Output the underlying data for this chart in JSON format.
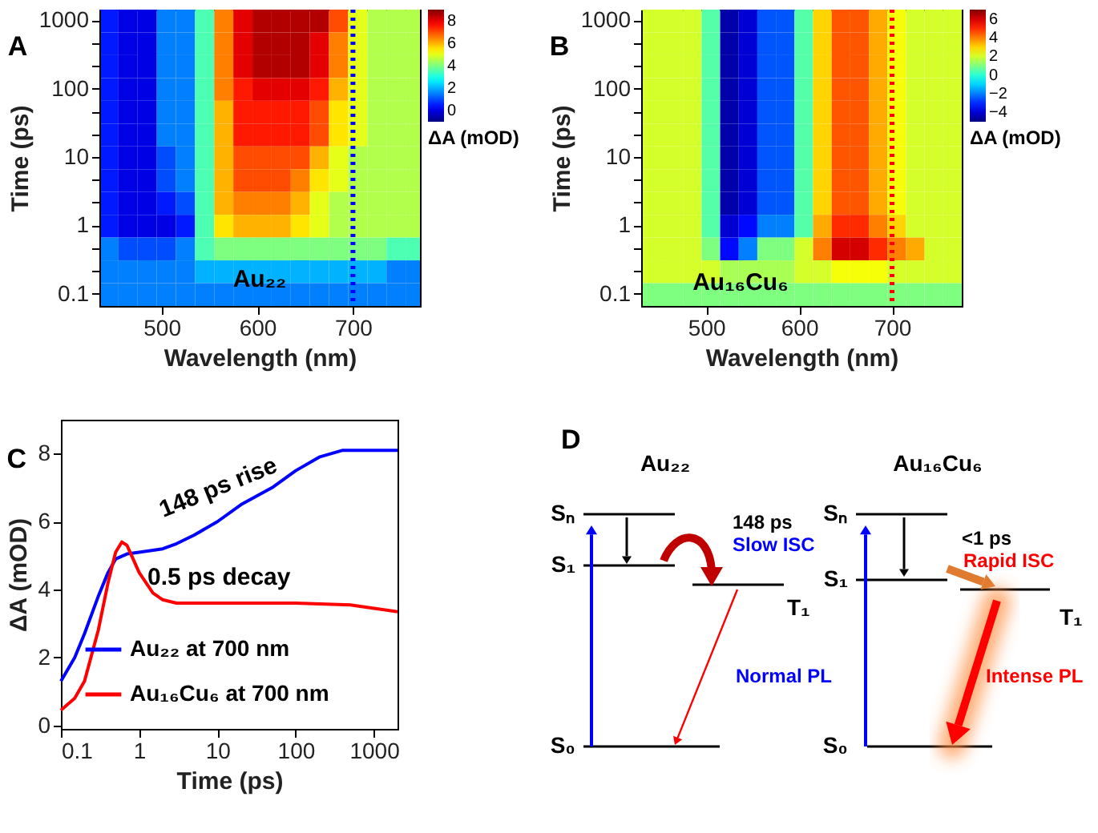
{
  "chart_data": [
    {
      "type": "heatmap",
      "title": "A",
      "xlabel": "Wavelength (nm)",
      "ylabel": "Time (ps)",
      "clabel": "ΔA (mOD)",
      "x": [
        445,
        465,
        485,
        505,
        525,
        545,
        565,
        585,
        605,
        625,
        645,
        665,
        685,
        705,
        725,
        745,
        765
      ],
      "y_categories": [
        "1000",
        null,
        null,
        "100",
        null,
        null,
        "10",
        null,
        null,
        "1",
        null,
        null,
        "0.1"
      ],
      "cells": [
        [
          0.5,
          0,
          0,
          1.5,
          1.5,
          3.5,
          6.5,
          8,
          8.5,
          8.5,
          8.5,
          8.5,
          7,
          5,
          4.5,
          4.5,
          4.5
        ],
        [
          0.5,
          0,
          0,
          1.5,
          1.5,
          3.5,
          6.5,
          8,
          8.5,
          8.5,
          8.5,
          8,
          6.5,
          5,
          4.5,
          4.5,
          4.5
        ],
        [
          0.5,
          0,
          0,
          1.5,
          1.5,
          3.5,
          6.5,
          8,
          8.5,
          8.5,
          8.5,
          8,
          6.5,
          5,
          4.5,
          4.5,
          4.5
        ],
        [
          0.5,
          0,
          0,
          1.5,
          1.5,
          3.5,
          6.5,
          7.5,
          8,
          8,
          8,
          7.5,
          6,
          5,
          4.5,
          4.5,
          4.5
        ],
        [
          0.5,
          0,
          0,
          1.5,
          1.5,
          3.5,
          6,
          7.5,
          7.5,
          7.5,
          7.5,
          7,
          5.5,
          5,
          4.5,
          4.5,
          4.5
        ],
        [
          0.5,
          0,
          0,
          1.5,
          1.5,
          3.5,
          6,
          7.5,
          7.5,
          7.5,
          7.5,
          7,
          5.5,
          5,
          4.5,
          4.5,
          4.5
        ],
        [
          0.5,
          0,
          0,
          1,
          1.5,
          3.5,
          6,
          7,
          7,
          7,
          7,
          6,
          5,
          4.5,
          4.5,
          4.5,
          4.5
        ],
        [
          0.5,
          0,
          0,
          1,
          1.5,
          3.5,
          6,
          7,
          7,
          7,
          6.5,
          5.5,
          5,
          4.5,
          4.5,
          4.5,
          4.5
        ],
        [
          0.5,
          0,
          0,
          0.5,
          1,
          3.5,
          6,
          6.5,
          6.5,
          6.5,
          6,
          5,
          4.5,
          4.5,
          4.5,
          4.5,
          4.5
        ],
        [
          0.5,
          0,
          0,
          0,
          0.5,
          3.5,
          5.5,
          6,
          6,
          6,
          5.5,
          5,
          4.5,
          4.5,
          4.5,
          4.5,
          4.5
        ],
        [
          1.5,
          1,
          1,
          1,
          1.5,
          3.5,
          4,
          4,
          4,
          4,
          4,
          4,
          4,
          4,
          4,
          3.5,
          3.5
        ],
        [
          1.5,
          1.5,
          1.5,
          1.5,
          1.5,
          2,
          2,
          2,
          2,
          2,
          2,
          2,
          2,
          2,
          2,
          1.5,
          1.5
        ],
        [
          1.5,
          1.5,
          1.5,
          1.5,
          1.5,
          1.5,
          1.5,
          1.5,
          1.5,
          1.5,
          1.5,
          1.5,
          1.5,
          1.5,
          1.5,
          1.5,
          1.5
        ]
      ],
      "xlim": [
        435,
        770
      ],
      "xticks": [
        500,
        600,
        700
      ],
      "clim": [
        -1,
        9
      ],
      "cticks": [
        0,
        2,
        4,
        6,
        8
      ],
      "annotations": [
        "Au₂₂"
      ],
      "ref_lines": [
        {
          "axis": "x",
          "value": 700,
          "label": null,
          "color": "#0000ff",
          "line_style": "dotted"
        }
      ]
    },
    {
      "type": "heatmap",
      "title": "B",
      "xlabel": "Wavelength (nm)",
      "ylabel": "Time (ps)",
      "clabel": "ΔA (mOD)",
      "x": [
        445,
        465,
        485,
        505,
        525,
        545,
        565,
        585,
        605,
        625,
        645,
        665,
        685,
        705,
        725,
        745,
        765
      ],
      "y_categories": [
        "1000",
        null,
        null,
        "100",
        null,
        null,
        "10",
        null,
        null,
        "1",
        null,
        null,
        "0.1"
      ],
      "cells": [
        [
          2,
          2,
          2,
          0.5,
          -4.5,
          -4,
          -2.5,
          -2.5,
          0.5,
          3,
          4.5,
          4.5,
          3.5,
          2.4,
          2,
          2,
          2
        ],
        [
          2,
          2,
          2,
          0.5,
          -4.5,
          -4,
          -2.5,
          -2.5,
          0.5,
          3,
          4.5,
          4.5,
          3.5,
          2.4,
          2,
          2,
          2
        ],
        [
          2,
          2,
          2,
          0.5,
          -4.5,
          -4,
          -2.5,
          -2.5,
          0.5,
          3,
          4.5,
          4.5,
          3.5,
          2.4,
          2,
          2,
          2
        ],
        [
          2,
          2,
          2,
          0.5,
          -4.5,
          -4,
          -2.5,
          -2.5,
          0.5,
          3,
          4.5,
          4.5,
          3.5,
          2.4,
          2,
          2,
          2
        ],
        [
          2,
          2,
          2,
          0.5,
          -4.5,
          -4,
          -2.5,
          -2.5,
          0.5,
          3,
          4.5,
          4.5,
          3.5,
          2.4,
          2,
          2,
          2
        ],
        [
          2,
          2,
          2,
          0.5,
          -4.5,
          -4,
          -2.5,
          -2.5,
          0.5,
          3,
          4.5,
          4.5,
          3.5,
          2.4,
          2,
          2,
          2
        ],
        [
          2,
          2,
          2,
          0.5,
          -4.5,
          -4,
          -2.5,
          -2.5,
          0.5,
          3,
          4.5,
          4.5,
          3.5,
          2.4,
          2,
          2,
          2
        ],
        [
          2,
          2,
          2,
          0.5,
          -4.5,
          -4,
          -2.5,
          -2.5,
          0.5,
          3,
          4.5,
          4.5,
          3.5,
          2.4,
          2,
          2,
          2
        ],
        [
          2,
          2,
          2,
          0.5,
          -4.5,
          -4,
          -2.5,
          -2.5,
          0.5,
          3,
          4.5,
          4.5,
          3.5,
          2.4,
          2,
          2,
          2
        ],
        [
          2,
          2,
          2,
          0.5,
          -4,
          -3.4,
          -2,
          -2,
          0.5,
          3.5,
          5,
          5,
          4,
          3,
          2,
          2,
          2
        ],
        [
          2,
          2,
          2,
          1,
          -3.4,
          -2,
          1,
          1,
          2,
          4,
          6,
          6,
          5,
          4,
          3.5,
          2,
          2
        ],
        [
          2,
          2,
          2,
          2,
          1.5,
          1.5,
          1.5,
          1.5,
          2,
          2,
          2.4,
          2.4,
          2.4,
          2,
          2,
          2,
          2
        ],
        [
          1,
          1,
          1,
          1,
          1,
          1,
          1,
          1,
          1,
          1,
          1,
          1,
          1,
          1,
          1,
          1,
          1
        ]
      ],
      "xlim": [
        430,
        775
      ],
      "xticks": [
        500,
        600,
        700
      ],
      "clim": [
        -5,
        7
      ],
      "cticks": [
        -4,
        -2,
        0,
        2,
        4,
        6
      ],
      "annotations": [
        "Au₁₆Cu₆"
      ],
      "ref_lines": [
        {
          "axis": "x",
          "value": 700,
          "label": null,
          "color": "#ff0000",
          "line_style": "dotted"
        }
      ]
    },
    {
      "type": "line",
      "title": "C",
      "xlabel": "Time (ps)",
      "ylabel": "ΔA (mOD)",
      "log": "x",
      "legend": "bottom left",
      "xlim": [
        0.1,
        2000
      ],
      "xticks": [
        0.1,
        1,
        10,
        100,
        1000
      ],
      "ylim": [
        -0.1,
        9
      ],
      "yticks": [
        0,
        2,
        4,
        6,
        8
      ],
      "series": [
        {
          "name": "Au₂₂ at 700 nm",
          "color": "#0000ff",
          "x": [
            0.1,
            0.15,
            0.2,
            0.3,
            0.4,
            0.5,
            0.7,
            1,
            2,
            3,
            5,
            10,
            20,
            50,
            100,
            200,
            400,
            1000,
            2000
          ],
          "values": [
            1.3,
            2,
            2.7,
            3.8,
            4.5,
            4.9,
            5.05,
            5.1,
            5.2,
            5.35,
            5.6,
            6,
            6.5,
            7,
            7.5,
            7.9,
            8.1,
            8.1,
            8.1
          ]
        },
        {
          "name": "Au₁₆Cu₆ at 700 nm",
          "color": "#ff0000",
          "x": [
            0.1,
            0.15,
            0.2,
            0.3,
            0.4,
            0.5,
            0.6,
            0.7,
            0.8,
            1,
            1.5,
            2,
            3,
            10,
            100,
            500,
            1000,
            2000
          ],
          "values": [
            0.45,
            0.8,
            1.3,
            2.8,
            4.2,
            5.1,
            5.4,
            5.3,
            5,
            4.5,
            3.9,
            3.7,
            3.6,
            3.6,
            3.6,
            3.55,
            3.45,
            3.35
          ]
        }
      ],
      "annotations": [
        "148 ps rise",
        "0.5 ps decay"
      ]
    },
    {
      "type": "other",
      "title": "D",
      "annotations": [
        "Au₂₂",
        "Sₙ",
        "S₁",
        "S₀",
        "T₁",
        "148 ps",
        "Slow ISC",
        "Normal PL",
        "Au₁₆Cu₆",
        "Sₙ",
        "S₁",
        "S₀",
        "T₁",
        "<1 ps",
        "Rapid ISC",
        "Intense PL"
      ]
    }
  ]
}
